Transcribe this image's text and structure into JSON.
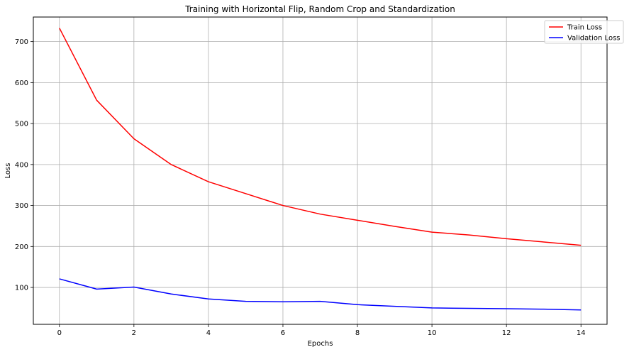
{
  "chart_data": {
    "type": "line",
    "title": "Training with Horizontal Flip, Random Crop and Standardization",
    "xlabel": "Epochs",
    "ylabel": "Loss",
    "x": [
      0,
      1,
      2,
      3,
      4,
      5,
      6,
      7,
      8,
      9,
      10,
      11,
      12,
      13,
      14
    ],
    "xlim": [
      -0.7,
      14.7
    ],
    "ylim": [
      10,
      760
    ],
    "xticks": [
      0,
      2,
      4,
      6,
      8,
      10,
      12,
      14
    ],
    "yticks": [
      100,
      200,
      300,
      400,
      500,
      600,
      700
    ],
    "grid": true,
    "legend_position": "top-right",
    "series": [
      {
        "name": "Train Loss",
        "color": "#ff0000",
        "values": [
          733,
          557,
          463,
          400,
          358,
          329,
          300,
          279,
          264,
          249,
          235,
          228,
          219,
          211,
          203
        ]
      },
      {
        "name": "Validation Loss",
        "color": "#0000ff",
        "values": [
          121,
          96,
          101,
          84,
          72,
          66,
          65,
          66,
          58,
          54,
          50,
          49,
          48,
          47,
          45
        ]
      }
    ]
  }
}
